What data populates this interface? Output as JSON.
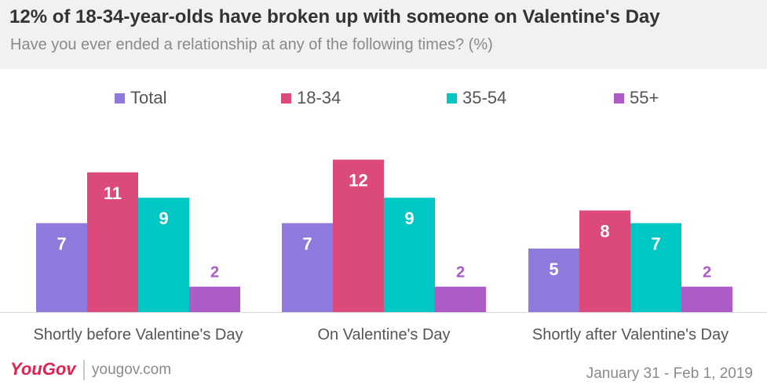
{
  "chart_data": {
    "type": "bar",
    "title": "12% of 18-34-year-olds  have broken up with someone on Valentine's Day",
    "subtitle": "Have you ever ended a relationship at any of the following times? (%)",
    "categories": [
      "Shortly before Valentine's Day",
      "On Valentine's Day",
      "Shortly after Valentine's Day"
    ],
    "series": [
      {
        "name": "Total",
        "color": "#8f79dd",
        "values": [
          7,
          7,
          5
        ]
      },
      {
        "name": "18-34",
        "color": "#dc4a7b",
        "values": [
          11,
          12,
          8
        ]
      },
      {
        "name": "35-54",
        "color": "#00c7c4",
        "values": [
          9,
          9,
          7
        ]
      },
      {
        "name": "55+",
        "color": "#ac5bc7",
        "values": [
          2,
          2,
          2
        ]
      }
    ],
    "ylim": [
      0,
      14
    ],
    "grid": false,
    "legend": "top"
  },
  "footer": {
    "brand": "YouGov",
    "url": "yougov.com",
    "date": "January 31 - Feb 1,  2019"
  }
}
